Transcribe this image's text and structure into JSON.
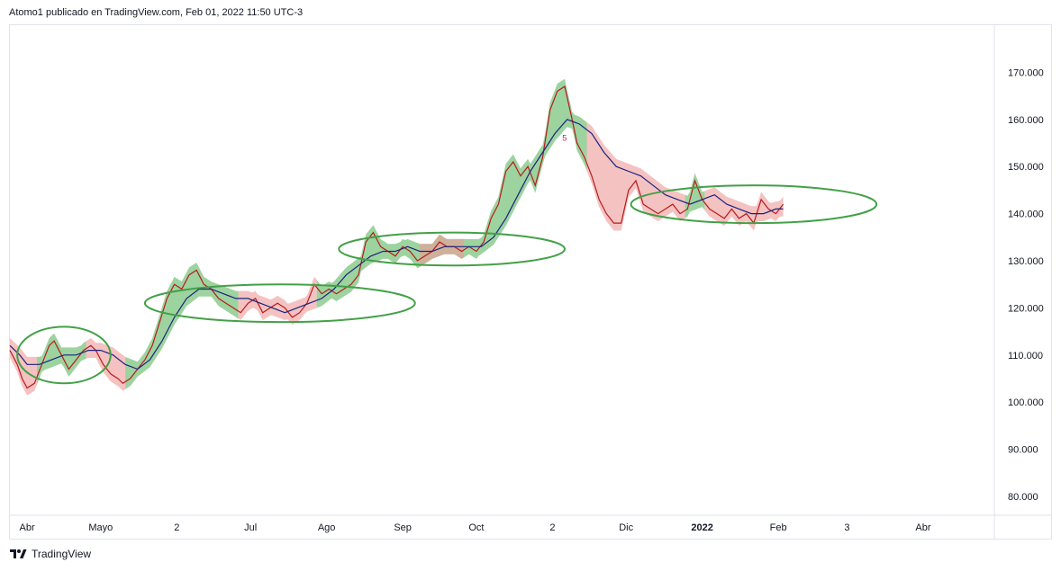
{
  "header": {
    "text": "Atomo1 publicado en TradingView.com, Feb 01, 2022 11:50 UTC-3"
  },
  "footer": {
    "brand": "TradingView"
  },
  "colors": {
    "price_line": "#b71c1c",
    "ma_line": "#1a237e",
    "cloud_up": "#4caf50",
    "cloud_down": "#ef9a9a",
    "ellipse": "#43a047",
    "marker": "#c2185b"
  },
  "chart_data": {
    "type": "line",
    "title": "",
    "xlabel": "",
    "ylabel": "",
    "ylim": [
      76,
      180
    ],
    "y_ticks": [
      "170.000",
      "160.000",
      "150.000",
      "140.000",
      "130.000",
      "120.000",
      "110.000",
      "100.000",
      "90.000",
      "80.000"
    ],
    "y_tick_values": [
      170,
      160,
      150,
      140,
      130,
      120,
      110,
      100,
      90,
      80
    ],
    "x_ticks": [
      {
        "label": "Abr",
        "x": 0,
        "bold": false
      },
      {
        "label": "Mayo",
        "x": 30,
        "bold": false
      },
      {
        "label": "2",
        "x": 61,
        "bold": false
      },
      {
        "label": "Jul",
        "x": 91,
        "bold": false
      },
      {
        "label": "Ago",
        "x": 122,
        "bold": false
      },
      {
        "label": "Sep",
        "x": 153,
        "bold": false
      },
      {
        "label": "Oct",
        "x": 183,
        "bold": false
      },
      {
        "label": "2",
        "x": 214,
        "bold": false
      },
      {
        "label": "Dic",
        "x": 244,
        "bold": false
      },
      {
        "label": "2022",
        "x": 275,
        "bold": true
      },
      {
        "label": "Feb",
        "x": 306,
        "bold": false
      },
      {
        "label": "3",
        "x": 334,
        "bold": false
      },
      {
        "label": "Abr",
        "x": 365,
        "bold": false
      }
    ],
    "xlim": [
      -7,
      394
    ],
    "series": [
      {
        "name": "price",
        "x": [
          -7,
          -4,
          -2,
          0,
          3,
          6,
          9,
          11,
          14,
          17,
          20,
          23,
          26,
          28,
          31,
          34,
          37,
          39,
          42,
          45,
          48,
          51,
          54,
          57,
          60,
          63,
          66,
          69,
          72,
          75,
          78,
          81,
          84,
          87,
          90,
          93,
          96,
          99,
          102,
          105,
          108,
          111,
          114,
          117,
          120,
          123,
          126,
          129,
          132,
          135,
          138,
          141,
          144,
          147,
          150,
          153,
          156,
          159,
          162,
          165,
          168,
          171,
          174,
          177,
          180,
          183,
          186,
          189,
          192,
          195,
          198,
          201,
          204,
          207,
          210,
          213,
          216,
          219,
          222,
          224,
          227,
          230,
          233,
          236,
          239,
          242,
          245,
          248,
          251,
          254,
          257,
          260,
          263,
          266,
          269,
          272,
          275,
          278,
          281,
          284,
          287,
          290,
          293,
          296,
          299,
          302,
          305,
          308
        ],
        "values": [
          111,
          108,
          105,
          103,
          104,
          108,
          112,
          113,
          110,
          107,
          109,
          111,
          112,
          111,
          108,
          106,
          105,
          104,
          105,
          107,
          109,
          112,
          117,
          122,
          125,
          124,
          127,
          128,
          125,
          124,
          122,
          121,
          120,
          119,
          121,
          122,
          119,
          120,
          121,
          120,
          118,
          119,
          121,
          125,
          123,
          124,
          123,
          124,
          125,
          127,
          134,
          136,
          133,
          132,
          131,
          133,
          132,
          130,
          131,
          132,
          134,
          133,
          133,
          132,
          133,
          132,
          134,
          139,
          142,
          149,
          151,
          148,
          150,
          146,
          152,
          162,
          166,
          167,
          160,
          155,
          152,
          148,
          143,
          140,
          138,
          138,
          145,
          147,
          142,
          141,
          140,
          141,
          142,
          140,
          141,
          147,
          143,
          141,
          140,
          139,
          141,
          139,
          140,
          138,
          143,
          141,
          140,
          142
        ]
      },
      {
        "name": "moving average",
        "x": [
          -7,
          -3,
          0,
          5,
          10,
          15,
          20,
          25,
          30,
          35,
          40,
          45,
          50,
          55,
          60,
          65,
          70,
          75,
          80,
          85,
          90,
          95,
          100,
          105,
          110,
          115,
          120,
          125,
          130,
          135,
          140,
          145,
          150,
          155,
          160,
          165,
          170,
          175,
          180,
          185,
          190,
          195,
          200,
          205,
          210,
          215,
          220,
          225,
          230,
          235,
          240,
          245,
          250,
          255,
          260,
          265,
          270,
          275,
          280,
          285,
          290,
          295,
          300,
          305,
          308
        ],
        "values": [
          112,
          110,
          108,
          108,
          109,
          110,
          110,
          111,
          111,
          110,
          108,
          107,
          109,
          113,
          118,
          122,
          124,
          124,
          123,
          122,
          122,
          121,
          120,
          119,
          120,
          121,
          122,
          124,
          127,
          129,
          131,
          132,
          132,
          133,
          132,
          132,
          133,
          133,
          133,
          133,
          135,
          139,
          144,
          149,
          153,
          157,
          160,
          159,
          157,
          153,
          150,
          149,
          148,
          146,
          144,
          143,
          142,
          143,
          144,
          142,
          141,
          140,
          140,
          141,
          141
        ]
      }
    ],
    "cloud": [
      {
        "from": -7,
        "to": 4,
        "trend": "down"
      },
      {
        "from": 4,
        "to": 24,
        "trend": "up"
      },
      {
        "from": 24,
        "to": 40,
        "trend": "down"
      },
      {
        "from": 40,
        "to": 86,
        "trend": "up"
      },
      {
        "from": 86,
        "to": 118,
        "trend": "down"
      },
      {
        "from": 118,
        "to": 130,
        "trend": "up"
      },
      {
        "from": 130,
        "to": 178,
        "trend": "up"
      },
      {
        "from": 160,
        "to": 178,
        "trend": "down"
      },
      {
        "from": 178,
        "to": 228,
        "trend": "up"
      },
      {
        "from": 228,
        "to": 268,
        "trend": "down"
      },
      {
        "from": 268,
        "to": 276,
        "trend": "up"
      },
      {
        "from": 276,
        "to": 308,
        "trend": "down"
      }
    ],
    "annotations": [
      {
        "type": "ellipse",
        "cx": 15,
        "cy": 110,
        "rx": 19,
        "ry": 6
      },
      {
        "type": "ellipse",
        "cx": 103,
        "cy": 121,
        "rx": 55,
        "ry": 4
      },
      {
        "type": "ellipse",
        "cx": 173,
        "cy": 132.5,
        "rx": 46,
        "ry": 3.5
      },
      {
        "type": "ellipse",
        "cx": 296,
        "cy": 142,
        "rx": 50,
        "ry": 4
      },
      {
        "type": "text",
        "x": 218,
        "y": 155.5,
        "text": "5"
      }
    ]
  }
}
